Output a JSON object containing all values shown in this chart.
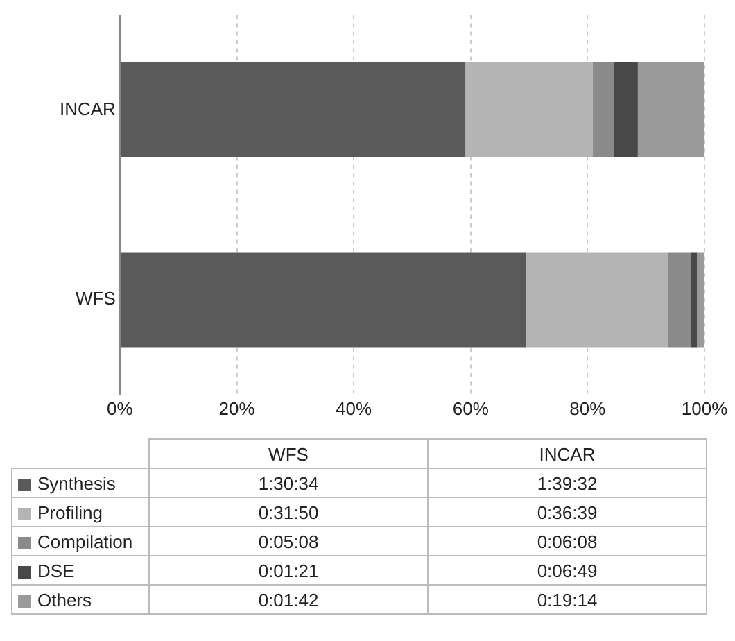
{
  "chart_data": {
    "type": "bar",
    "orientation": "horizontal",
    "stacked": true,
    "categories": [
      "INCAR",
      "WFS"
    ],
    "series": [
      {
        "name": "Synthesis",
        "color": "#5a5a5a",
        "values": [
          59.1,
          69.4
        ]
      },
      {
        "name": "Profiling",
        "color": "#b4b4b4",
        "values": [
          21.8,
          24.4
        ]
      },
      {
        "name": "Compilation",
        "color": "#8a8a8a",
        "values": [
          3.6,
          3.9
        ]
      },
      {
        "name": "DSE",
        "color": "#484848",
        "values": [
          4.1,
          1.0
        ]
      },
      {
        "name": "Others",
        "color": "#9a9a9a",
        "values": [
          11.4,
          1.3
        ]
      }
    ],
    "xlim": [
      0,
      100
    ],
    "xticks": [
      {
        "value": 0,
        "label": "0%"
      },
      {
        "value": 20,
        "label": "20%"
      },
      {
        "value": 40,
        "label": "40%"
      },
      {
        "value": 60,
        "label": "60%"
      },
      {
        "value": 80,
        "label": "80%"
      },
      {
        "value": 100,
        "label": "100%"
      }
    ],
    "grid": "x",
    "legend": "bottom",
    "annotations": [
      "1:30:34",
      "1:39:32",
      "0:31:50",
      "0:36:39",
      "0:05:08",
      "0:06:08",
      "0:01:21",
      "0:06:49",
      "0:01:42",
      "0:19:14"
    ]
  }
}
